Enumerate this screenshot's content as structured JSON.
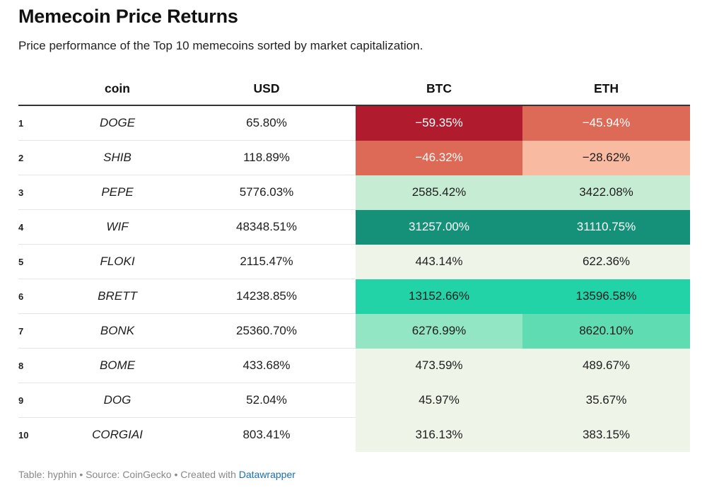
{
  "title": "Memecoin Price Returns",
  "subtitle": "Price performance of the Top 10 memecoins sorted by market capitalization.",
  "footer": {
    "text": "Table: hyphin • Source: CoinGecko • Created with ",
    "link": "Datawrapper"
  },
  "colors": {
    "deep_red": "#b01c2e",
    "red": "#dc6a56",
    "light_red": "#f8bba2",
    "pale_green": "#c6ecd4",
    "dark_teal": "#15917a",
    "teal": "#22d3a8",
    "mint": "#93e6c4",
    "mid_mint": "#5fdcb1",
    "neutral": "#eff4e8"
  },
  "chart_data": {
    "type": "table",
    "columns": [
      "",
      "coin",
      "USD",
      "BTC",
      "ETH"
    ],
    "rows": [
      {
        "rank": "1",
        "coin": "DOGE",
        "usd": "65.80%",
        "btc": "−59.35%",
        "eth": "−45.94%"
      },
      {
        "rank": "2",
        "coin": "SHIB",
        "usd": "118.89%",
        "btc": "−46.32%",
        "eth": "−28.62%"
      },
      {
        "rank": "3",
        "coin": "PEPE",
        "usd": "5776.03%",
        "btc": "2585.42%",
        "eth": "3422.08%"
      },
      {
        "rank": "4",
        "coin": "WIF",
        "usd": "48348.51%",
        "btc": "31257.00%",
        "eth": "31110.75%"
      },
      {
        "rank": "5",
        "coin": "FLOKI",
        "usd": "2115.47%",
        "btc": "443.14%",
        "eth": "622.36%"
      },
      {
        "rank": "6",
        "coin": "BRETT",
        "usd": "14238.85%",
        "btc": "13152.66%",
        "eth": "13596.58%"
      },
      {
        "rank": "7",
        "coin": "BONK",
        "usd": "25360.70%",
        "btc": "6276.99%",
        "eth": "8620.10%"
      },
      {
        "rank": "8",
        "coin": "BOME",
        "usd": "433.68%",
        "btc": "473.59%",
        "eth": "489.67%"
      },
      {
        "rank": "9",
        "coin": "DOG",
        "usd": "52.04%",
        "btc": "45.97%",
        "eth": "35.67%"
      },
      {
        "rank": "10",
        "coin": "CORGIAI",
        "usd": "803.41%",
        "btc": "316.13%",
        "eth": "383.15%"
      }
    ],
    "heatmap_values": {
      "btc": [
        -59.35,
        -46.32,
        2585.42,
        31257.0,
        443.14,
        13152.66,
        6276.99,
        473.59,
        45.97,
        316.13
      ],
      "eth": [
        -45.94,
        -28.62,
        3422.08,
        31110.75,
        622.36,
        13596.58,
        8620.1,
        489.67,
        35.67,
        383.15
      ]
    }
  }
}
